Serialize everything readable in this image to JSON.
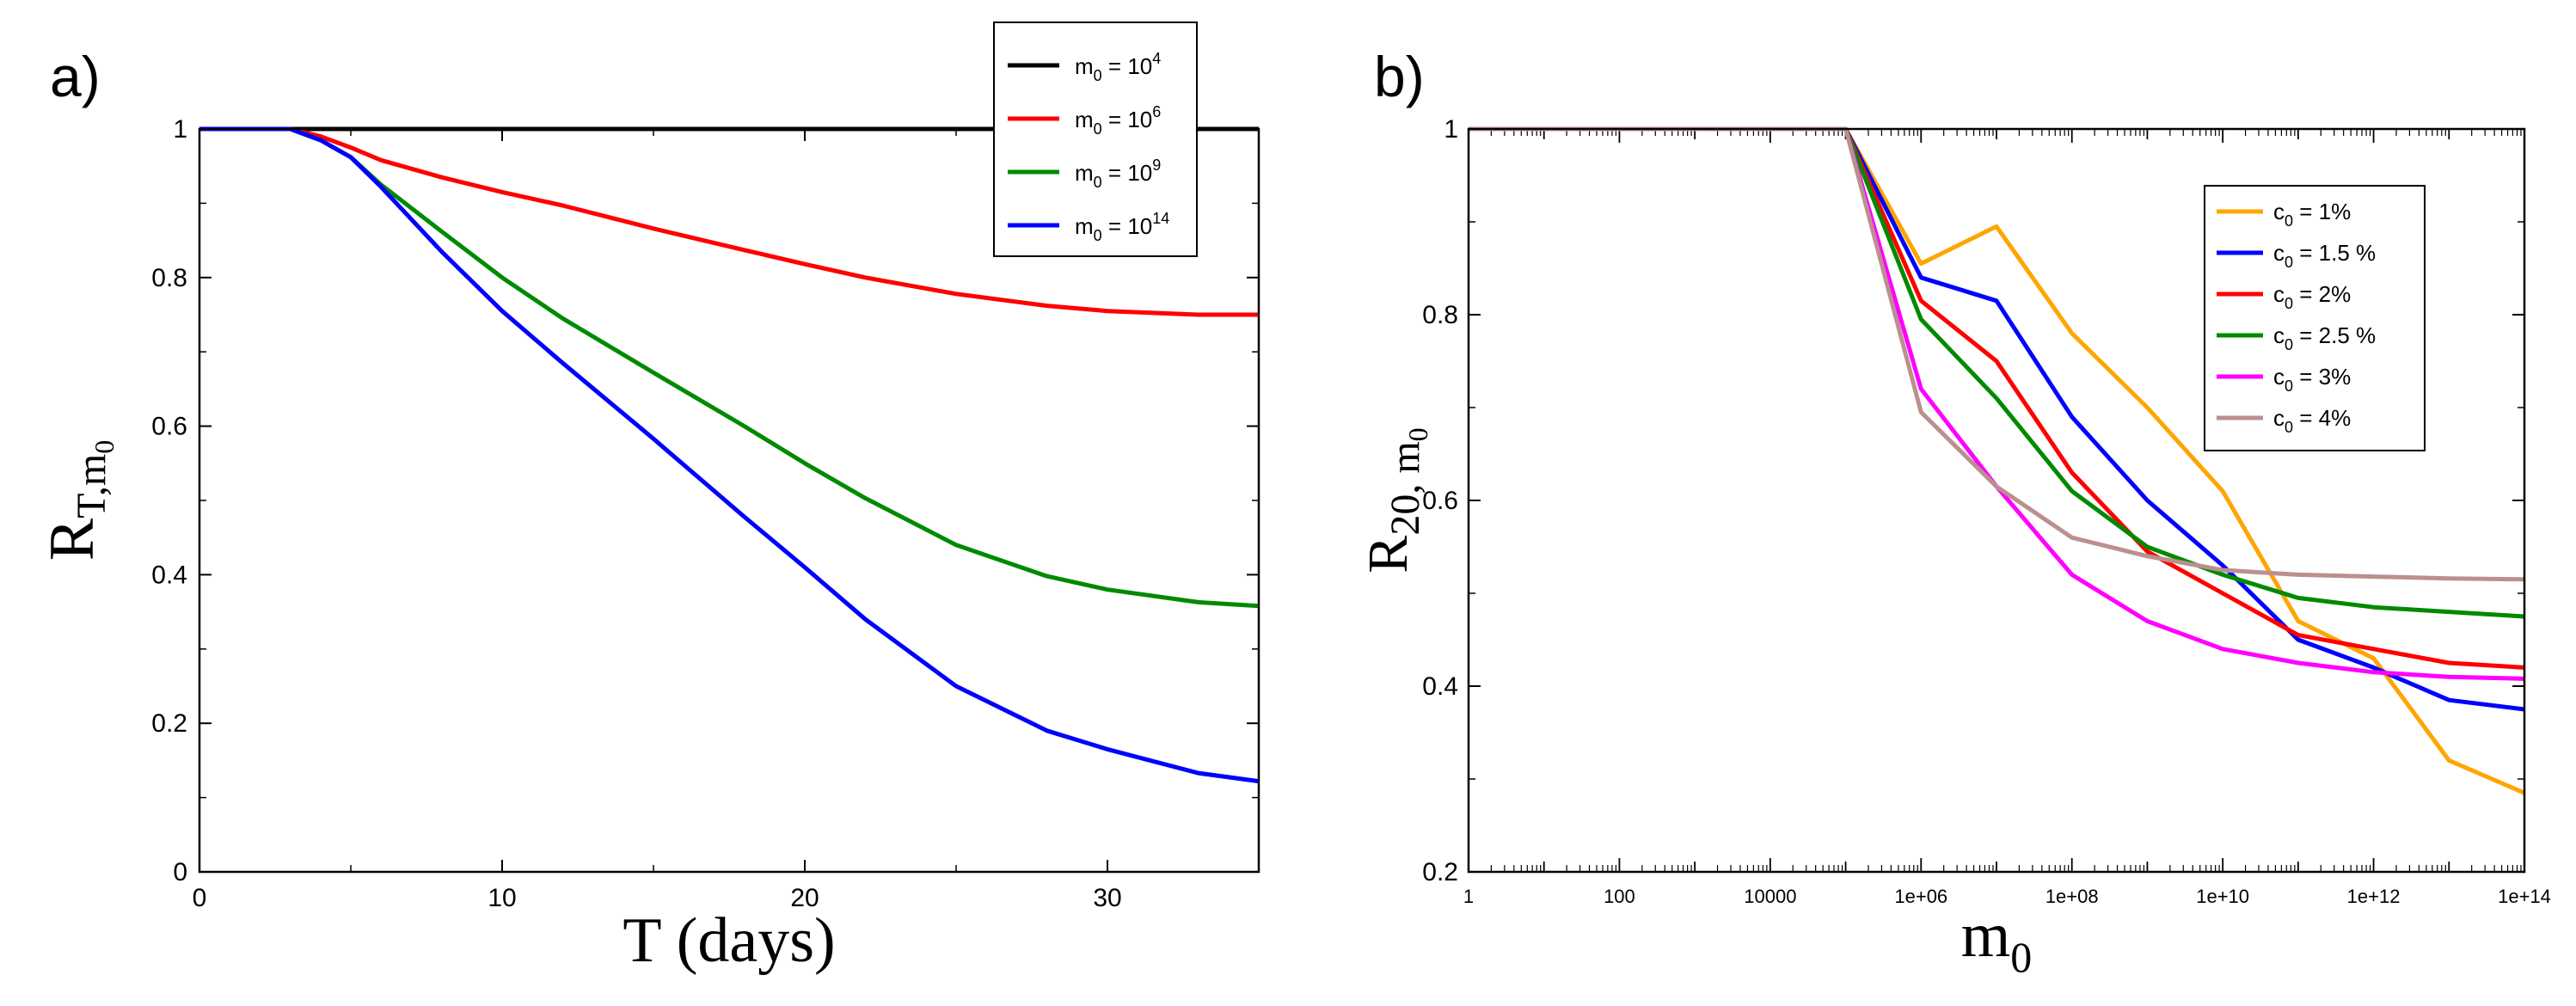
{
  "colors": {
    "black": "#000000",
    "red": "#ff0000",
    "green": "#008a00",
    "blue": "#0000ff",
    "orange": "#ffa500",
    "magenta": "#ff00ff",
    "rosy": "#bc8f8f"
  },
  "chart_data": [
    {
      "type": "line",
      "panel_label": "a)",
      "xlabel": "T (days)",
      "ylabel": {
        "base": "R",
        "sub": "T,m",
        "subsub": "0"
      },
      "xlim": [
        0,
        35
      ],
      "ylim": [
        0,
        1
      ],
      "xticks": [
        0,
        10,
        20,
        30
      ],
      "xtick_labels": [
        "0",
        "10",
        "20",
        "30"
      ],
      "yticks": [
        0,
        0.2,
        0.4,
        0.6,
        0.8,
        1
      ],
      "ytick_labels": [
        "0",
        "0.2",
        "0.4",
        "0.6",
        "0.8",
        "1"
      ],
      "legend_position": "top-right",
      "series": [
        {
          "name": "m0 = 10^4",
          "legend": {
            "base": "m",
            "sub": "0",
            "mid": " = 10",
            "sup": "4"
          },
          "color": "#000000",
          "x": [
            0,
            35
          ],
          "y": [
            1,
            1
          ]
        },
        {
          "name": "m0 = 10^6",
          "legend": {
            "base": "m",
            "sub": "0",
            "mid": " = 10",
            "sup": "6"
          },
          "color": "#ff0000",
          "x": [
            0,
            3,
            4,
            5,
            6,
            8,
            10,
            12,
            15,
            18,
            20,
            22,
            25,
            28,
            30,
            33,
            35
          ],
          "y": [
            1,
            1,
            0.99,
            0.975,
            0.958,
            0.935,
            0.915,
            0.897,
            0.866,
            0.837,
            0.818,
            0.8,
            0.778,
            0.762,
            0.755,
            0.75,
            0.75
          ]
        },
        {
          "name": "m0 = 10^9",
          "legend": {
            "base": "m",
            "sub": "0",
            "mid": " = 10",
            "sup": "9"
          },
          "color": "#008a00",
          "x": [
            0,
            3,
            4,
            5,
            6,
            8,
            10,
            12,
            15,
            18,
            20,
            22,
            25,
            28,
            30,
            33,
            35
          ],
          "y": [
            1,
            1,
            0.985,
            0.962,
            0.925,
            0.862,
            0.8,
            0.745,
            0.672,
            0.6,
            0.55,
            0.503,
            0.44,
            0.398,
            0.38,
            0.363,
            0.358
          ]
        },
        {
          "name": "m0 = 10^14",
          "legend": {
            "base": "m",
            "sub": "0",
            "mid": " = 10",
            "sup": "14"
          },
          "color": "#0000ff",
          "x": [
            0,
            3,
            4,
            5,
            6,
            8,
            10,
            12,
            15,
            18,
            20,
            22,
            25,
            28,
            30,
            33,
            35
          ],
          "y": [
            1,
            1,
            0.985,
            0.962,
            0.922,
            0.835,
            0.755,
            0.685,
            0.583,
            0.478,
            0.41,
            0.34,
            0.25,
            0.19,
            0.165,
            0.133,
            0.122
          ]
        }
      ]
    },
    {
      "type": "line",
      "panel_label": "b)",
      "xlabel": {
        "base": "m",
        "sub": "0"
      },
      "ylabel": {
        "base": "R",
        "sub": "20, m",
        "subsub": "0"
      },
      "xscale": "log10",
      "xlim": [
        1,
        100000000000000.0
      ],
      "ylim": [
        0.2,
        1
      ],
      "xticks_exp": [
        0,
        2,
        4,
        6,
        8,
        10,
        12,
        14
      ],
      "xtick_labels": [
        "1",
        "100",
        "10000",
        "1e+06",
        "1e+08",
        "1e+10",
        "1e+12",
        "1e+14"
      ],
      "yticks": [
        0.2,
        0.4,
        0.6,
        0.8,
        1
      ],
      "ytick_labels": [
        "0.2",
        "0.4",
        "0.6",
        "0.8",
        "1"
      ],
      "legend_position": "top-right",
      "series": [
        {
          "name": "c0 = 1%",
          "legend": {
            "base": "c",
            "sub": "0",
            "mid": " = 1%"
          },
          "color": "#ffa500",
          "x_exp": [
            0,
            5,
            6,
            7,
            8,
            9,
            10,
            11,
            12,
            13,
            14
          ],
          "y": [
            1,
            1,
            0.855,
            0.895,
            0.78,
            0.7,
            0.61,
            0.47,
            0.43,
            0.32,
            0.285
          ]
        },
        {
          "name": "c0 = 1.5 %",
          "legend": {
            "base": "c",
            "sub": "0",
            "mid": " = 1.5 %"
          },
          "color": "#0000ff",
          "x_exp": [
            0,
            5,
            6,
            7,
            8,
            9,
            10,
            11,
            12,
            13,
            14
          ],
          "y": [
            1,
            1,
            0.84,
            0.815,
            0.69,
            0.6,
            0.53,
            0.45,
            0.42,
            0.385,
            0.375
          ]
        },
        {
          "name": "c0 = 2%",
          "legend": {
            "base": "c",
            "sub": "0",
            "mid": " = 2%"
          },
          "color": "#ff0000",
          "x_exp": [
            0,
            5,
            6,
            7,
            8,
            9,
            10,
            11,
            12,
            13,
            14
          ],
          "y": [
            1,
            1,
            0.815,
            0.75,
            0.63,
            0.545,
            0.5,
            0.455,
            0.44,
            0.425,
            0.42
          ]
        },
        {
          "name": "c0 = 2.5 %",
          "legend": {
            "base": "c",
            "sub": "0",
            "mid": " = 2.5 %"
          },
          "color": "#008a00",
          "x_exp": [
            0,
            5,
            6,
            7,
            8,
            9,
            10,
            11,
            12,
            13,
            14
          ],
          "y": [
            1,
            1,
            0.795,
            0.71,
            0.61,
            0.55,
            0.52,
            0.495,
            0.485,
            0.48,
            0.475
          ]
        },
        {
          "name": "c0 = 3%",
          "legend": {
            "base": "c",
            "sub": "0",
            "mid": " = 3%"
          },
          "color": "#ff00ff",
          "x_exp": [
            0,
            5,
            6,
            7,
            8,
            9,
            10,
            11,
            12,
            13,
            14
          ],
          "y": [
            1,
            1,
            0.72,
            0.615,
            0.52,
            0.47,
            0.44,
            0.425,
            0.415,
            0.41,
            0.408
          ]
        },
        {
          "name": "c0 = 4%",
          "legend": {
            "base": "c",
            "sub": "0",
            "mid": " = 4%"
          },
          "color": "#bc8f8f",
          "x_exp": [
            0,
            5,
            6,
            7,
            8,
            9,
            10,
            11,
            12,
            13,
            14
          ],
          "y": [
            1,
            1,
            0.695,
            0.615,
            0.56,
            0.54,
            0.525,
            0.52,
            0.518,
            0.516,
            0.515
          ]
        }
      ]
    }
  ]
}
